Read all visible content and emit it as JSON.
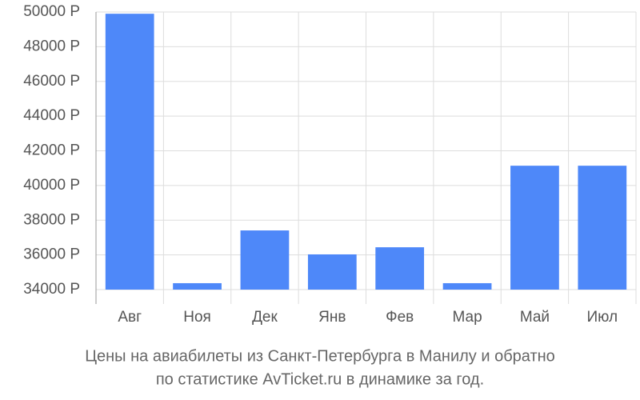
{
  "chart_data": {
    "type": "bar",
    "categories": [
      "Авг",
      "Ноя",
      "Дек",
      "Янв",
      "Фев",
      "Мар",
      "Май",
      "Июл"
    ],
    "values": [
      49900,
      34370,
      37410,
      36030,
      36440,
      34370,
      41140,
      41140
    ],
    "color": "#4e88f9",
    "ylim": [
      34000,
      50000
    ],
    "yticks": [
      {
        "value": 34000,
        "label": "34000 Р"
      },
      {
        "value": 36000,
        "label": "36000 Р"
      },
      {
        "value": 38000,
        "label": "38000 Р"
      },
      {
        "value": 40000,
        "label": "40000 Р"
      },
      {
        "value": 42000,
        "label": "42000 Р"
      },
      {
        "value": 44000,
        "label": "44000 Р"
      },
      {
        "value": 46000,
        "label": "46000 Р"
      },
      {
        "value": 48000,
        "label": "48000 Р"
      },
      {
        "value": 50000,
        "label": "50000 Р"
      }
    ],
    "grid": true,
    "caption": [
      "Цены на авиабилеты из Санкт-Петербурга в Манилу и обратно",
      "по статистике AvTicket.ru в динамике за год."
    ]
  }
}
